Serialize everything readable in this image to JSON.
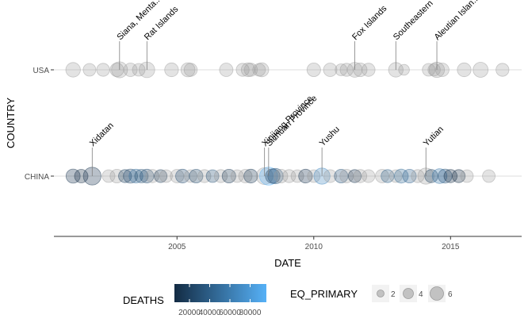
{
  "chart_data": {
    "type": "scatter",
    "xlabel": "DATE",
    "ylabel": "COUNTRY",
    "categories": [
      "CHINA",
      "USA"
    ],
    "xlim": [
      2000.5,
      2017.6
    ],
    "x_ticks": [
      2005,
      2010,
      2015
    ],
    "x_tick_labels": [
      "2005",
      "2010",
      "2015"
    ],
    "grid": "horizontal lines at each country",
    "legend_position": "bottom",
    "legend": {
      "color": {
        "title": "DEATHS",
        "low_color": "#132B43",
        "high_color": "#56B1F7",
        "ticks": [
          "20000",
          "40000",
          "60000",
          "80000"
        ]
      },
      "size": {
        "title": "EQ_PRIMARY",
        "ticks": [
          "2",
          "4",
          "6"
        ]
      }
    },
    "point_color": "#9a9a9a",
    "labeled_events": [
      {
        "country": "USA",
        "x": 2002.9,
        "label": "Siana, Menta..."
      },
      {
        "country": "USA",
        "x": 2003.9,
        "label": "Rat Islands"
      },
      {
        "country": "USA",
        "x": 2011.5,
        "label": "Fox Islands"
      },
      {
        "country": "USA",
        "x": 2013.0,
        "label": "Southeastern"
      },
      {
        "country": "USA",
        "x": 2014.5,
        "label": "Aleutian Islan..."
      },
      {
        "country": "CHINA",
        "x": 2001.9,
        "label": "Xidatan"
      },
      {
        "country": "CHINA",
        "x": 2008.2,
        "label": "Xinjiang Province"
      },
      {
        "country": "CHINA",
        "x": 2008.35,
        "label": "Sichuan Province"
      },
      {
        "country": "CHINA",
        "x": 2010.3,
        "label": "Yushu"
      },
      {
        "country": "CHINA",
        "x": 2014.1,
        "label": "Yutian"
      }
    ],
    "series": [
      {
        "country": "USA",
        "points": [
          {
            "x": 2001.2,
            "mag": 6.0
          },
          {
            "x": 2001.8,
            "mag": 5.0
          },
          {
            "x": 2002.3,
            "mag": 5.2
          },
          {
            "x": 2002.8,
            "mag": 5.5
          },
          {
            "x": 2002.9,
            "mag": 6.8
          },
          {
            "x": 2003.3,
            "mag": 5.4
          },
          {
            "x": 2003.6,
            "mag": 5.0
          },
          {
            "x": 2003.9,
            "mag": 6.6
          },
          {
            "x": 2004.8,
            "mag": 5.6
          },
          {
            "x": 2005.4,
            "mag": 5.8
          },
          {
            "x": 2005.5,
            "mag": 5.3
          },
          {
            "x": 2006.8,
            "mag": 5.4
          },
          {
            "x": 2007.4,
            "mag": 5.2
          },
          {
            "x": 2007.6,
            "mag": 5.6
          },
          {
            "x": 2007.7,
            "mag": 5.3
          },
          {
            "x": 2008.0,
            "mag": 5.0
          },
          {
            "x": 2008.1,
            "mag": 5.7
          },
          {
            "x": 2010.0,
            "mag": 5.5
          },
          {
            "x": 2010.6,
            "mag": 5.4
          },
          {
            "x": 2011.0,
            "mag": 4.6
          },
          {
            "x": 2011.2,
            "mag": 5.2
          },
          {
            "x": 2011.5,
            "mag": 6.2
          },
          {
            "x": 2011.7,
            "mag": 5.5
          },
          {
            "x": 2012.0,
            "mag": 5.3
          },
          {
            "x": 2013.0,
            "mag": 6.0
          },
          {
            "x": 2013.3,
            "mag": 4.0
          },
          {
            "x": 2014.2,
            "mag": 5.0
          },
          {
            "x": 2014.4,
            "mag": 4.8
          },
          {
            "x": 2014.5,
            "mag": 6.5
          },
          {
            "x": 2014.7,
            "mag": 5.4
          },
          {
            "x": 2015.5,
            "mag": 5.6
          },
          {
            "x": 2016.1,
            "mag": 6.3
          },
          {
            "x": 2016.9,
            "mag": 5.2
          }
        ]
      },
      {
        "country": "CHINA",
        "points": [
          {
            "x": 2001.2,
            "mag": 5.8,
            "deaths": 2
          },
          {
            "x": 2001.5,
            "mag": 5.4,
            "deaths": 1
          },
          {
            "x": 2001.9,
            "mag": 7.8,
            "deaths": 2
          },
          {
            "x": 2002.5,
            "mag": 5.0
          },
          {
            "x": 2002.8,
            "mag": 5.5
          },
          {
            "x": 2003.1,
            "mag": 5.2,
            "deaths": 5
          },
          {
            "x": 2003.3,
            "mag": 5.8,
            "deaths": 10
          },
          {
            "x": 2003.5,
            "mag": 5.6,
            "deaths": 268
          },
          {
            "x": 2003.7,
            "mag": 5.4,
            "deaths": 20
          },
          {
            "x": 2003.9,
            "mag": 5.6,
            "deaths": 16
          },
          {
            "x": 2004.1,
            "mag": 5.3
          },
          {
            "x": 2004.4,
            "mag": 5.1,
            "deaths": 3
          },
          {
            "x": 2004.6,
            "mag": 5.0
          },
          {
            "x": 2005.0,
            "mag": 5.4
          },
          {
            "x": 2005.2,
            "mag": 5.6,
            "deaths": 16
          },
          {
            "x": 2005.5,
            "mag": 5.0
          },
          {
            "x": 2005.7,
            "mag": 5.5,
            "deaths": 13
          },
          {
            "x": 2006.0,
            "mag": 5.2
          },
          {
            "x": 2006.3,
            "mag": 5.0,
            "deaths": 22
          },
          {
            "x": 2006.6,
            "mag": 5.2
          },
          {
            "x": 2006.9,
            "mag": 5.5,
            "deaths": 3
          },
          {
            "x": 2007.2,
            "mag": 5.0
          },
          {
            "x": 2007.5,
            "mag": 5.4
          },
          {
            "x": 2007.7,
            "mag": 5.6,
            "deaths": 3
          },
          {
            "x": 2008.2,
            "mag": 7.2
          },
          {
            "x": 2008.35,
            "mag": 7.9,
            "deaths": 87587
          },
          {
            "x": 2008.5,
            "mag": 6.0,
            "deaths": 8
          },
          {
            "x": 2008.6,
            "mag": 6.5,
            "deaths": 43
          },
          {
            "x": 2008.8,
            "mag": 5.5
          },
          {
            "x": 2009.1,
            "mag": 5.2
          },
          {
            "x": 2009.4,
            "mag": 5.0
          },
          {
            "x": 2009.7,
            "mag": 5.6,
            "deaths": 2
          },
          {
            "x": 2010.0,
            "mag": 5.0
          },
          {
            "x": 2010.3,
            "mag": 6.9,
            "deaths": 2698
          },
          {
            "x": 2010.6,
            "mag": 5.1
          },
          {
            "x": 2011.0,
            "mag": 5.5,
            "deaths": 25
          },
          {
            "x": 2011.2,
            "mag": 5.4
          },
          {
            "x": 2011.5,
            "mag": 5.2,
            "deaths": 2
          },
          {
            "x": 2011.7,
            "mag": 5.3
          },
          {
            "x": 2012.0,
            "mag": 5.1
          },
          {
            "x": 2012.5,
            "mag": 5.4
          },
          {
            "x": 2012.7,
            "mag": 5.2,
            "deaths": 81
          },
          {
            "x": 2013.0,
            "mag": 5.0
          },
          {
            "x": 2013.2,
            "mag": 5.7,
            "deaths": 196
          },
          {
            "x": 2013.5,
            "mag": 5.5,
            "deaths": 95
          },
          {
            "x": 2013.8,
            "mag": 5.2
          },
          {
            "x": 2014.1,
            "mag": 6.9
          },
          {
            "x": 2014.3,
            "mag": 5.3,
            "deaths": 5
          },
          {
            "x": 2014.6,
            "mag": 6.1,
            "deaths": 617
          },
          {
            "x": 2014.8,
            "mag": 5.7,
            "deaths": 25
          },
          {
            "x": 2015.0,
            "mag": 5.3,
            "deaths": 1
          },
          {
            "x": 2015.3,
            "mag": 5.2,
            "deaths": 1
          },
          {
            "x": 2015.6,
            "mag": 5.0
          },
          {
            "x": 2016.4,
            "mag": 5.0
          }
        ]
      }
    ]
  }
}
